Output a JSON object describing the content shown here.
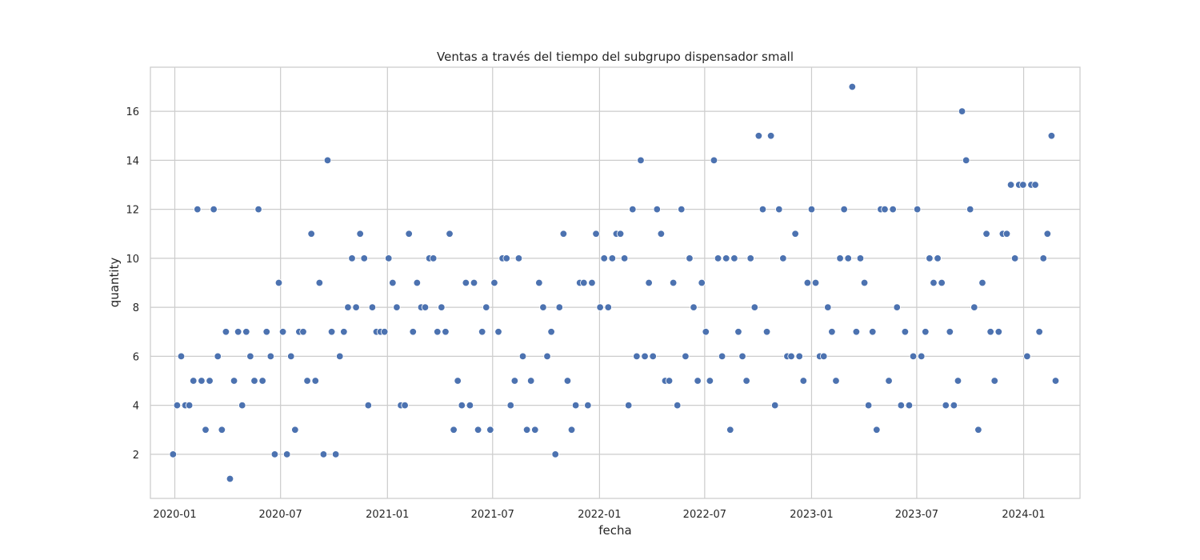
{
  "chart_data": {
    "type": "scatter",
    "title": "Ventas a través del tiempo del subgrupo dispensador small",
    "xlabel": "fecha",
    "ylabel": "quantity",
    "grid": true,
    "point_color": "#4c72b0",
    "xlim": [
      "2019-11-20",
      "2024-04-07"
    ],
    "ylim": [
      0.2,
      17.8
    ],
    "x_ticks": [
      "2020-01-01",
      "2020-07-01",
      "2021-01-01",
      "2021-07-01",
      "2022-01-01",
      "2022-07-01",
      "2023-01-01",
      "2023-07-01",
      "2024-01-01"
    ],
    "x_tick_labels": [
      "2020-01",
      "2020-07",
      "2021-01",
      "2021-07",
      "2022-01",
      "2022-07",
      "2023-01",
      "2023-07",
      "2024-01"
    ],
    "y_ticks": [
      2,
      4,
      6,
      8,
      10,
      12,
      14,
      16
    ],
    "y_tick_labels": [
      "2",
      "4",
      "6",
      "8",
      "10",
      "12",
      "14",
      "16"
    ],
    "series": [
      {
        "points": [
          [
            "2019-12-29",
            2
          ],
          [
            "2020-01-05",
            4
          ],
          [
            "2020-01-12",
            6
          ],
          [
            "2020-01-19",
            4
          ],
          [
            "2020-01-26",
            4
          ],
          [
            "2020-02-02",
            5
          ],
          [
            "2020-02-09",
            12
          ],
          [
            "2020-02-16",
            5
          ],
          [
            "2020-02-23",
            3
          ],
          [
            "2020-03-01",
            5
          ],
          [
            "2020-03-08",
            12
          ],
          [
            "2020-03-15",
            6
          ],
          [
            "2020-03-22",
            3
          ],
          [
            "2020-03-29",
            7
          ],
          [
            "2020-04-05",
            1
          ],
          [
            "2020-04-12",
            5
          ],
          [
            "2020-04-19",
            7
          ],
          [
            "2020-04-26",
            4
          ],
          [
            "2020-05-03",
            7
          ],
          [
            "2020-05-10",
            6
          ],
          [
            "2020-05-17",
            5
          ],
          [
            "2020-05-24",
            12
          ],
          [
            "2020-05-31",
            5
          ],
          [
            "2020-06-07",
            7
          ],
          [
            "2020-06-14",
            6
          ],
          [
            "2020-06-21",
            2
          ],
          [
            "2020-06-28",
            9
          ],
          [
            "2020-07-05",
            7
          ],
          [
            "2020-07-12",
            2
          ],
          [
            "2020-07-19",
            6
          ],
          [
            "2020-07-26",
            3
          ],
          [
            "2020-08-02",
            7
          ],
          [
            "2020-08-09",
            7
          ],
          [
            "2020-08-16",
            5
          ],
          [
            "2020-08-23",
            11
          ],
          [
            "2020-08-30",
            5
          ],
          [
            "2020-09-06",
            9
          ],
          [
            "2020-09-13",
            2
          ],
          [
            "2020-09-20",
            14
          ],
          [
            "2020-09-27",
            7
          ],
          [
            "2020-10-04",
            2
          ],
          [
            "2020-10-11",
            6
          ],
          [
            "2020-10-18",
            7
          ],
          [
            "2020-10-25",
            8
          ],
          [
            "2020-11-01",
            10
          ],
          [
            "2020-11-08",
            8
          ],
          [
            "2020-11-15",
            11
          ],
          [
            "2020-11-22",
            10
          ],
          [
            "2020-11-29",
            4
          ],
          [
            "2020-12-06",
            8
          ],
          [
            "2020-12-13",
            7
          ],
          [
            "2020-12-20",
            7
          ],
          [
            "2020-12-27",
            7
          ],
          [
            "2021-01-03",
            10
          ],
          [
            "2021-01-10",
            9
          ],
          [
            "2021-01-17",
            8
          ],
          [
            "2021-01-24",
            4
          ],
          [
            "2021-01-31",
            4
          ],
          [
            "2021-02-07",
            11
          ],
          [
            "2021-02-14",
            7
          ],
          [
            "2021-02-21",
            9
          ],
          [
            "2021-02-28",
            8
          ],
          [
            "2021-03-07",
            8
          ],
          [
            "2021-03-14",
            10
          ],
          [
            "2021-03-21",
            10
          ],
          [
            "2021-03-28",
            7
          ],
          [
            "2021-04-04",
            8
          ],
          [
            "2021-04-11",
            7
          ],
          [
            "2021-04-18",
            11
          ],
          [
            "2021-04-25",
            3
          ],
          [
            "2021-05-02",
            5
          ],
          [
            "2021-05-09",
            4
          ],
          [
            "2021-05-16",
            9
          ],
          [
            "2021-05-23",
            4
          ],
          [
            "2021-05-30",
            9
          ],
          [
            "2021-06-06",
            3
          ],
          [
            "2021-06-13",
            7
          ],
          [
            "2021-06-20",
            8
          ],
          [
            "2021-06-27",
            3
          ],
          [
            "2021-07-04",
            9
          ],
          [
            "2021-07-11",
            7
          ],
          [
            "2021-07-18",
            10
          ],
          [
            "2021-07-25",
            10
          ],
          [
            "2021-08-01",
            4
          ],
          [
            "2021-08-08",
            5
          ],
          [
            "2021-08-15",
            10
          ],
          [
            "2021-08-22",
            6
          ],
          [
            "2021-08-29",
            3
          ],
          [
            "2021-09-05",
            5
          ],
          [
            "2021-09-12",
            3
          ],
          [
            "2021-09-19",
            9
          ],
          [
            "2021-09-26",
            8
          ],
          [
            "2021-10-03",
            6
          ],
          [
            "2021-10-10",
            7
          ],
          [
            "2021-10-17",
            2
          ],
          [
            "2021-10-24",
            8
          ],
          [
            "2021-10-31",
            11
          ],
          [
            "2021-11-07",
            5
          ],
          [
            "2021-11-14",
            3
          ],
          [
            "2021-11-21",
            4
          ],
          [
            "2021-11-28",
            9
          ],
          [
            "2021-12-05",
            9
          ],
          [
            "2021-12-12",
            4
          ],
          [
            "2021-12-19",
            9
          ],
          [
            "2021-12-26",
            11
          ],
          [
            "2022-01-02",
            8
          ],
          [
            "2022-01-09",
            10
          ],
          [
            "2022-01-16",
            8
          ],
          [
            "2022-01-23",
            10
          ],
          [
            "2022-01-30",
            11
          ],
          [
            "2022-02-06",
            11
          ],
          [
            "2022-02-13",
            10
          ],
          [
            "2022-02-20",
            4
          ],
          [
            "2022-02-27",
            12
          ],
          [
            "2022-03-06",
            6
          ],
          [
            "2022-03-13",
            14
          ],
          [
            "2022-03-20",
            6
          ],
          [
            "2022-03-27",
            9
          ],
          [
            "2022-04-03",
            6
          ],
          [
            "2022-04-10",
            12
          ],
          [
            "2022-04-17",
            11
          ],
          [
            "2022-04-24",
            5
          ],
          [
            "2022-05-01",
            5
          ],
          [
            "2022-05-08",
            9
          ],
          [
            "2022-05-15",
            4
          ],
          [
            "2022-05-22",
            12
          ],
          [
            "2022-05-29",
            6
          ],
          [
            "2022-06-05",
            10
          ],
          [
            "2022-06-12",
            8
          ],
          [
            "2022-06-19",
            5
          ],
          [
            "2022-06-26",
            9
          ],
          [
            "2022-07-03",
            7
          ],
          [
            "2022-07-10",
            5
          ],
          [
            "2022-07-17",
            14
          ],
          [
            "2022-07-24",
            10
          ],
          [
            "2022-07-31",
            6
          ],
          [
            "2022-08-07",
            10
          ],
          [
            "2022-08-14",
            3
          ],
          [
            "2022-08-21",
            10
          ],
          [
            "2022-08-28",
            7
          ],
          [
            "2022-09-04",
            6
          ],
          [
            "2022-09-11",
            5
          ],
          [
            "2022-09-18",
            10
          ],
          [
            "2022-09-25",
            8
          ],
          [
            "2022-10-02",
            15
          ],
          [
            "2022-10-09",
            12
          ],
          [
            "2022-10-16",
            7
          ],
          [
            "2022-10-23",
            15
          ],
          [
            "2022-10-30",
            4
          ],
          [
            "2022-11-06",
            12
          ],
          [
            "2022-11-13",
            10
          ],
          [
            "2022-11-20",
            6
          ],
          [
            "2022-11-27",
            6
          ],
          [
            "2022-12-04",
            11
          ],
          [
            "2022-12-11",
            6
          ],
          [
            "2022-12-18",
            5
          ],
          [
            "2022-12-25",
            9
          ],
          [
            "2023-01-01",
            12
          ],
          [
            "2023-01-08",
            9
          ],
          [
            "2023-01-15",
            6
          ],
          [
            "2023-01-22",
            6
          ],
          [
            "2023-01-29",
            8
          ],
          [
            "2023-02-05",
            7
          ],
          [
            "2023-02-12",
            5
          ],
          [
            "2023-02-19",
            10
          ],
          [
            "2023-02-26",
            12
          ],
          [
            "2023-03-05",
            10
          ],
          [
            "2023-03-12",
            17
          ],
          [
            "2023-03-19",
            7
          ],
          [
            "2023-03-26",
            10
          ],
          [
            "2023-04-02",
            9
          ],
          [
            "2023-04-09",
            4
          ],
          [
            "2023-04-16",
            7
          ],
          [
            "2023-04-23",
            3
          ],
          [
            "2023-04-30",
            12
          ],
          [
            "2023-05-07",
            12
          ],
          [
            "2023-05-14",
            5
          ],
          [
            "2023-05-21",
            12
          ],
          [
            "2023-05-28",
            8
          ],
          [
            "2023-06-04",
            4
          ],
          [
            "2023-06-11",
            7
          ],
          [
            "2023-06-18",
            4
          ],
          [
            "2023-06-25",
            6
          ],
          [
            "2023-07-02",
            12
          ],
          [
            "2023-07-09",
            6
          ],
          [
            "2023-07-16",
            7
          ],
          [
            "2023-07-23",
            10
          ],
          [
            "2023-07-30",
            9
          ],
          [
            "2023-08-06",
            10
          ],
          [
            "2023-08-13",
            9
          ],
          [
            "2023-08-20",
            4
          ],
          [
            "2023-08-27",
            7
          ],
          [
            "2023-09-03",
            4
          ],
          [
            "2023-09-10",
            5
          ],
          [
            "2023-09-17",
            16
          ],
          [
            "2023-09-24",
            14
          ],
          [
            "2023-10-01",
            12
          ],
          [
            "2023-10-08",
            8
          ],
          [
            "2023-10-15",
            3
          ],
          [
            "2023-10-22",
            9
          ],
          [
            "2023-10-29",
            11
          ],
          [
            "2023-11-05",
            7
          ],
          [
            "2023-11-12",
            5
          ],
          [
            "2023-11-19",
            7
          ],
          [
            "2023-11-26",
            11
          ],
          [
            "2023-12-03",
            11
          ],
          [
            "2023-12-10",
            13
          ],
          [
            "2023-12-17",
            10
          ],
          [
            "2023-12-24",
            13
          ],
          [
            "2023-12-31",
            13
          ],
          [
            "2024-01-07",
            6
          ],
          [
            "2024-01-14",
            13
          ],
          [
            "2024-01-21",
            13
          ],
          [
            "2024-01-28",
            7
          ],
          [
            "2024-02-04",
            10
          ],
          [
            "2024-02-11",
            11
          ],
          [
            "2024-02-18",
            15
          ],
          [
            "2024-02-25",
            5
          ]
        ]
      }
    ]
  }
}
